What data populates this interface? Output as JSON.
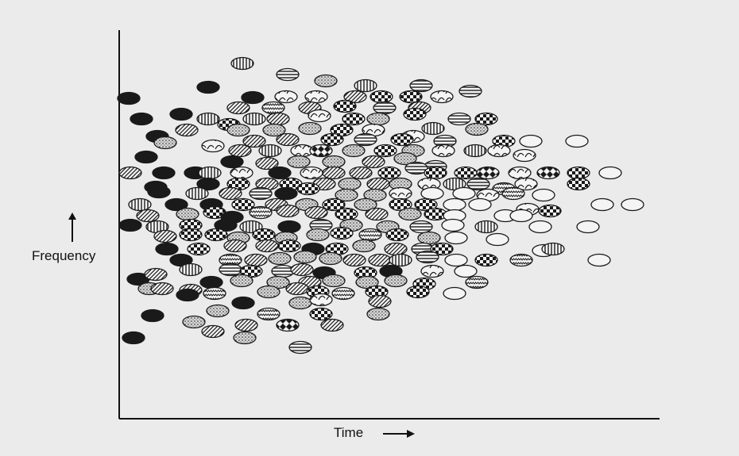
{
  "figure": {
    "ylabel": "Frequency",
    "xlabel": "Time",
    "colors": {
      "ink": "#1a1a1a",
      "paper": "#ebebeb",
      "dot_fill": "#f4f4f4"
    }
  }
}
